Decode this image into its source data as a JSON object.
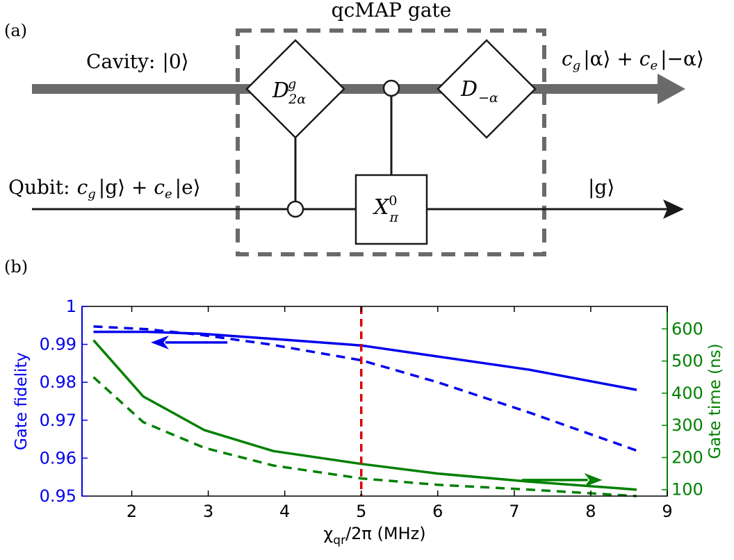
{
  "circuit": {
    "panel_label": "(a)",
    "gate_title": "qcMAP gate",
    "cavity_input_label": "Cavity:",
    "cavity_input_state": "|0⟩",
    "cavity_output": {
      "c1": "c",
      "s1": "g",
      "k1": "|α⟩ + ",
      "c2": "c",
      "s2": "e",
      "k2": "|−α⟩"
    },
    "qubit_input_label": "Qubit:",
    "qubit_input": {
      "c1": "c",
      "s1": "g",
      "k1": "|g⟩ + ",
      "c2": "c",
      "s2": "e",
      "k2": "|e⟩"
    },
    "qubit_output": "|g⟩",
    "gate_D1": {
      "base": "D",
      "sup": "g",
      "sub": "2α"
    },
    "gate_X": {
      "base": "X",
      "sup": "0",
      "sub": "π"
    },
    "gate_D2": {
      "base": "D",
      "sub": "−α"
    },
    "colors": {
      "cavity_line": "#6a6a6a",
      "box_dash": "#6a6a6a",
      "wire": "#1a1a1a"
    }
  },
  "chart_data": {
    "panel_label": "(b)",
    "type": "line",
    "xlabel_main": "χ",
    "xlabel_sub": "qr",
    "xlabel_rest": "/2π (MHz)",
    "ylabel_left": "Gate fidelity",
    "ylabel_right": "Gate time (ns)",
    "xlim": [
      1.35,
      9
    ],
    "ylim_left": [
      0.95,
      1
    ],
    "ylim_right": [
      80,
      670
    ],
    "x_ticks": [
      2,
      3,
      4,
      5,
      6,
      7,
      8,
      9
    ],
    "x_tick_labels": [
      "2",
      "3",
      "4",
      "5",
      "6",
      "7",
      "8",
      "9"
    ],
    "y_left_ticks": [
      0.95,
      0.96,
      0.97,
      0.98,
      0.99,
      1
    ],
    "y_left_tick_labels": [
      "0.95",
      "0.96",
      "0.97",
      "0.98",
      "0.99",
      "1"
    ],
    "y_right_ticks": [
      100,
      200,
      300,
      400,
      500,
      600
    ],
    "y_right_tick_labels": [
      "100",
      "200",
      "300",
      "400",
      "500",
      "600"
    ],
    "vline_x": 5,
    "series": [
      {
        "axis": "left",
        "style": "solid",
        "color": "#0000ee",
        "x": [
          1.5,
          2.2,
          2.9,
          3.8,
          5.0,
          6.0,
          7.2,
          8.6
        ],
        "y": [
          0.9933,
          0.9933,
          0.9928,
          0.9915,
          0.9897,
          0.9868,
          0.9833,
          0.978
        ]
      },
      {
        "axis": "left",
        "style": "dashed",
        "color": "#0000ee",
        "x": [
          1.5,
          2.2,
          2.9,
          3.8,
          5.0,
          6.0,
          7.2,
          8.6
        ],
        "y": [
          0.9947,
          0.994,
          0.9925,
          0.99,
          0.9858,
          0.98,
          0.972,
          0.962
        ]
      },
      {
        "axis": "right",
        "style": "solid",
        "color": "#008000",
        "x": [
          1.5,
          2.15,
          2.95,
          3.85,
          5.0,
          6.0,
          7.2,
          8.6
        ],
        "y": [
          565,
          390,
          285,
          220,
          180,
          150,
          125,
          100
        ]
      },
      {
        "axis": "right",
        "style": "dashed",
        "color": "#008000",
        "x": [
          1.5,
          2.15,
          2.95,
          3.85,
          5.0,
          6.0,
          7.2,
          8.6
        ],
        "y": [
          450,
          310,
          230,
          175,
          135,
          115,
          100,
          80
        ]
      }
    ],
    "arrows": [
      {
        "axis": "left",
        "direction": "left",
        "color": "#0000ee",
        "x_from": 3.25,
        "x_to": 2.25,
        "y": 0.9905
      },
      {
        "axis": "right",
        "direction": "right",
        "color": "#008000",
        "x_from": 7.1,
        "x_to": 8.15,
        "y": 130
      }
    ],
    "colors": {
      "left_axis": "#0000ee",
      "right_axis": "#008000",
      "vline": "#e00000",
      "frame": "#000000"
    }
  }
}
